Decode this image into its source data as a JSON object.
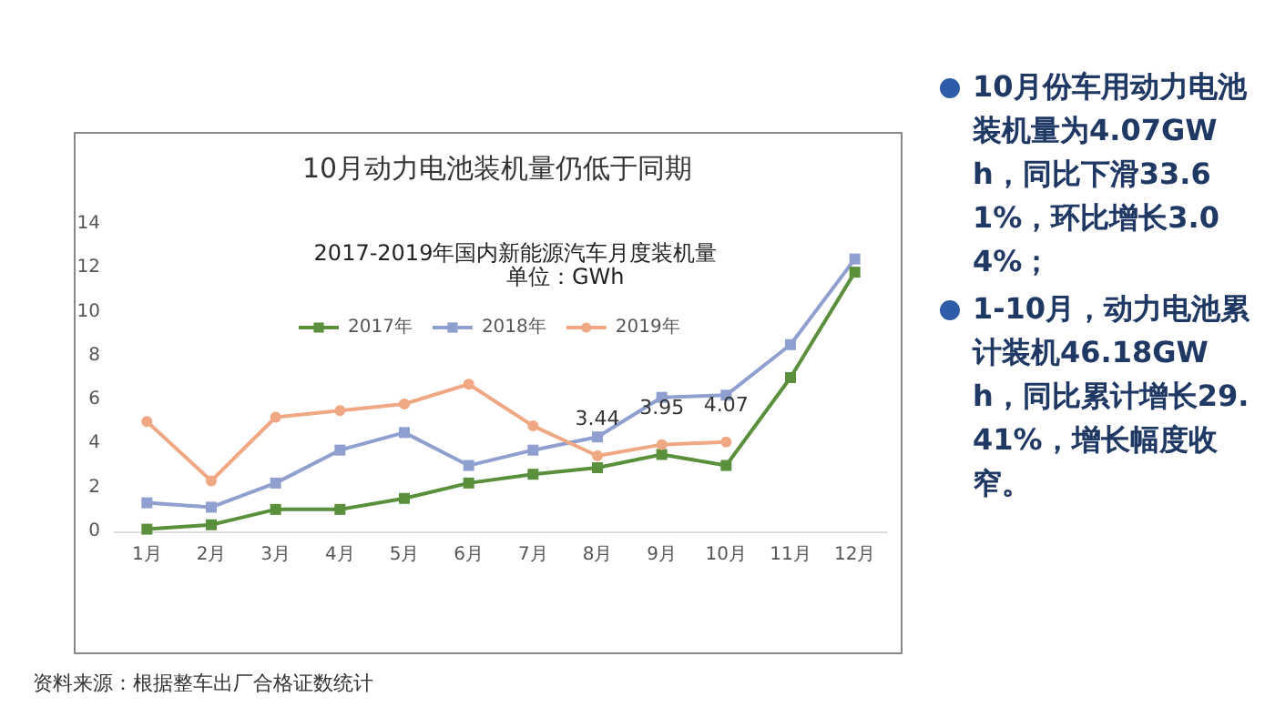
{
  "chart_data": {
    "type": "line",
    "title": "10月动力电池装机量仍低于同期",
    "subtitle": "2017-2019年国内新能源汽车月度装机量",
    "categories": [
      "1月",
      "2月",
      "3月",
      "4月",
      "5月",
      "6月",
      "7月",
      "8月",
      "9月",
      "10月",
      "11月",
      "12月"
    ],
    "series": [
      {
        "name": "2017年",
        "color": "#5a8f3c",
        "marker": "square",
        "values": [
          0.1,
          0.3,
          1.0,
          1.0,
          1.5,
          2.2,
          2.6,
          2.9,
          3.5,
          3.0,
          7.0,
          11.8
        ]
      },
      {
        "name": "2018年",
        "color": "#8e9fd0",
        "marker": "square",
        "values": [
          1.3,
          1.1,
          2.2,
          3.7,
          4.5,
          3.0,
          3.7,
          4.3,
          6.1,
          6.2,
          8.5,
          12.4
        ]
      },
      {
        "name": "2019年",
        "color": "#f0a884",
        "marker": "circle",
        "values": [
          5.0,
          2.3,
          5.2,
          5.5,
          5.8,
          6.7,
          4.8,
          3.44,
          3.95,
          4.07,
          null,
          null
        ],
        "value_labels": [
          null,
          null,
          null,
          null,
          null,
          null,
          null,
          "3.44",
          "3.95",
          "4.07",
          null,
          null
        ]
      }
    ],
    "ylim": [
      0,
      14
    ],
    "yticks": [
      0,
      2,
      4,
      6,
      8,
      10,
      12,
      14
    ],
    "grid": false,
    "legend": "top",
    "annotations": [
      "资料来源：根据整车出厂合格证数统计",
      "单位：GWh",
      "10月份车用动力电池装机量为4.07GWh，同比下滑33.61%，环比增长3.04%；",
      "1-10月，动力电池累计装机46.18GWh，同比累计增长29.41%，增长幅度收窄。"
    ]
  }
}
